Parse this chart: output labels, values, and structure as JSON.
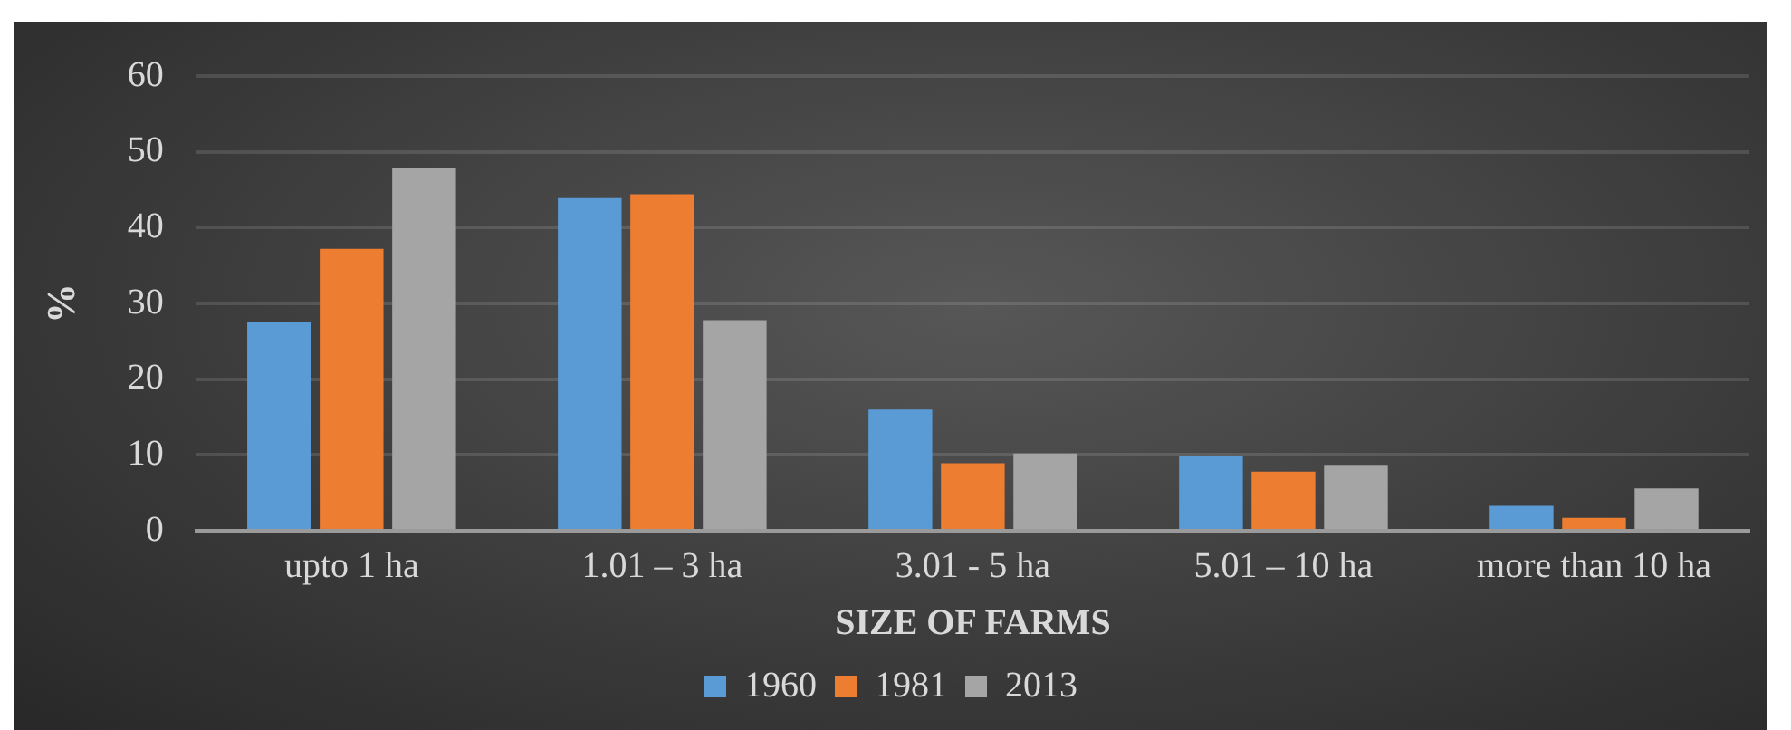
{
  "chart_data": {
    "type": "bar",
    "xlabel": "SIZE OF FARMS",
    "ylabel": "%",
    "categories": [
      "upto 1 ha",
      "1.01 – 3 ha",
      "3.01 - 5 ha",
      "5.01 – 10 ha",
      "more than 10 ha"
    ],
    "series": [
      {
        "name": "1960",
        "color": "#5b9bd5",
        "values": [
          27.6,
          43.9,
          16.0,
          9.8,
          3.3
        ]
      },
      {
        "name": "1981",
        "color": "#ed7d31",
        "values": [
          37.2,
          44.4,
          8.9,
          7.8,
          1.7
        ]
      },
      {
        "name": "2013",
        "color": "#a5a5a5",
        "values": [
          47.8,
          27.8,
          10.2,
          8.7,
          5.6
        ]
      }
    ],
    "ylim": [
      0,
      60
    ],
    "yticks": [
      0,
      10,
      20,
      30,
      40,
      50,
      60
    ],
    "grid": "y",
    "legend": "bottom"
  }
}
